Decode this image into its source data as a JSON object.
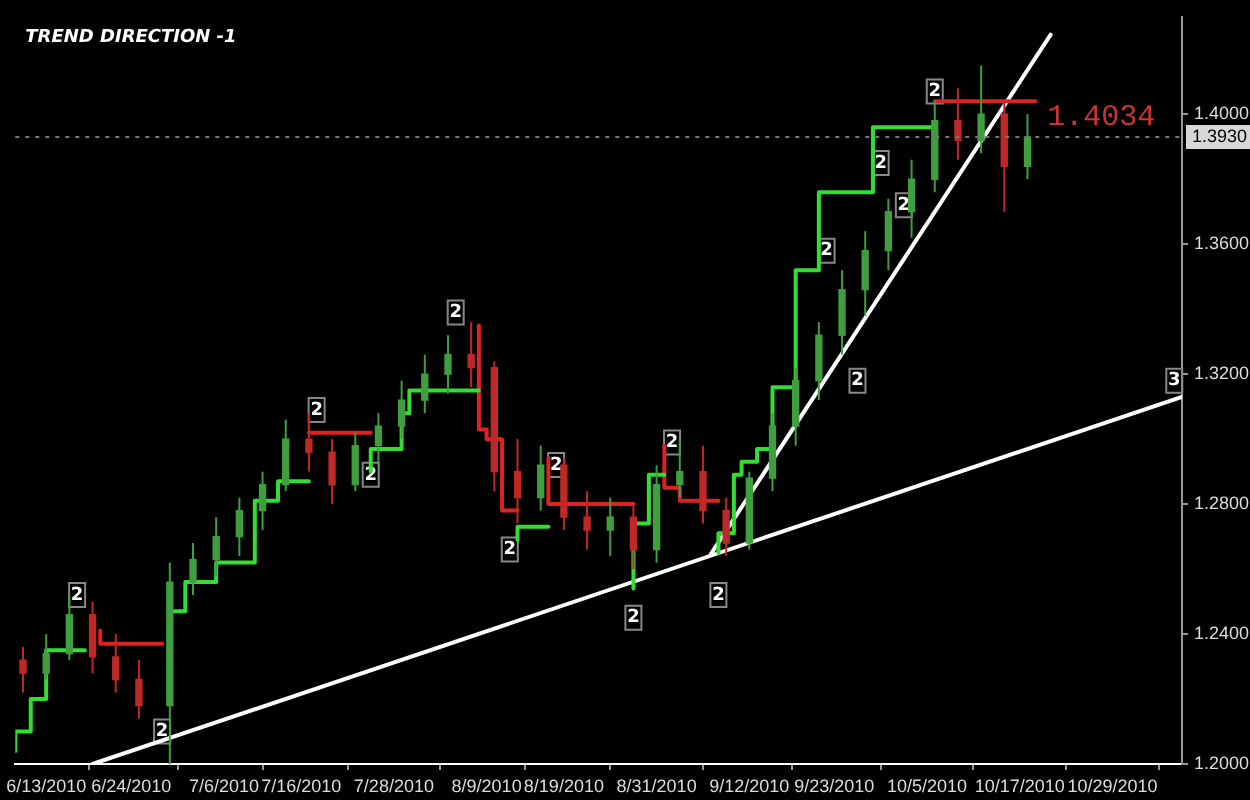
{
  "chart_data": {
    "type": "candlestick",
    "title": "TREND DIRECTION -1",
    "x": [
      "2010-06-10",
      "2010-06-13",
      "2010-06-16",
      "2010-06-19",
      "2010-06-22",
      "2010-06-25",
      "2010-06-29",
      "2010-07-02",
      "2010-07-05",
      "2010-07-08",
      "2010-07-11",
      "2010-07-14",
      "2010-07-17",
      "2010-07-20",
      "2010-07-23",
      "2010-07-26",
      "2010-07-29",
      "2010-08-01",
      "2010-08-04",
      "2010-08-07",
      "2010-08-10",
      "2010-08-13",
      "2010-08-16",
      "2010-08-19",
      "2010-08-22",
      "2010-08-25",
      "2010-08-28",
      "2010-08-31",
      "2010-09-03",
      "2010-09-06",
      "2010-09-09",
      "2010-09-12",
      "2010-09-15",
      "2010-09-18",
      "2010-09-21",
      "2010-09-24",
      "2010-09-27",
      "2010-09-30",
      "2010-10-03",
      "2010-10-06",
      "2010-10-09",
      "2010-10-12",
      "2010-10-15",
      "2010-10-18"
    ],
    "ohlc": [
      [
        1.232,
        1.236,
        1.222,
        1.228
      ],
      [
        1.228,
        1.24,
        1.226,
        1.234
      ],
      [
        1.234,
        1.252,
        1.232,
        1.246
      ],
      [
        1.246,
        1.25,
        1.228,
        1.233
      ],
      [
        1.233,
        1.24,
        1.222,
        1.226
      ],
      [
        1.226,
        1.232,
        1.214,
        1.218
      ],
      [
        1.218,
        1.262,
        1.2,
        1.256
      ],
      [
        1.256,
        1.268,
        1.252,
        1.263
      ],
      [
        1.263,
        1.276,
        1.258,
        1.27
      ],
      [
        1.27,
        1.282,
        1.264,
        1.278
      ],
      [
        1.278,
        1.29,
        1.272,
        1.286
      ],
      [
        1.286,
        1.306,
        1.284,
        1.3
      ],
      [
        1.3,
        1.308,
        1.29,
        1.296
      ],
      [
        1.296,
        1.3,
        1.28,
        1.286
      ],
      [
        1.286,
        1.302,
        1.284,
        1.298
      ],
      [
        1.298,
        1.308,
        1.292,
        1.304
      ],
      [
        1.304,
        1.318,
        1.3,
        1.312
      ],
      [
        1.312,
        1.326,
        1.308,
        1.32
      ],
      [
        1.32,
        1.332,
        1.314,
        1.326
      ],
      [
        1.326,
        1.336,
        1.316,
        1.322
      ],
      [
        1.322,
        1.324,
        1.284,
        1.29
      ],
      [
        1.29,
        1.3,
        1.274,
        1.282
      ],
      [
        1.282,
        1.298,
        1.278,
        1.292
      ],
      [
        1.292,
        1.294,
        1.272,
        1.276
      ],
      [
        1.276,
        1.284,
        1.266,
        1.272
      ],
      [
        1.272,
        1.282,
        1.264,
        1.276
      ],
      [
        1.276,
        1.28,
        1.26,
        1.266
      ],
      [
        1.266,
        1.292,
        1.262,
        1.286
      ],
      [
        1.286,
        1.3,
        1.282,
        1.29
      ],
      [
        1.29,
        1.298,
        1.274,
        1.278
      ],
      [
        1.278,
        1.282,
        1.264,
        1.268
      ],
      [
        1.268,
        1.29,
        1.266,
        1.288
      ],
      [
        1.288,
        1.308,
        1.284,
        1.304
      ],
      [
        1.304,
        1.322,
        1.298,
        1.318
      ],
      [
        1.318,
        1.336,
        1.312,
        1.332
      ],
      [
        1.332,
        1.352,
        1.326,
        1.346
      ],
      [
        1.346,
        1.364,
        1.338,
        1.358
      ],
      [
        1.358,
        1.374,
        1.352,
        1.37
      ],
      [
        1.37,
        1.386,
        1.362,
        1.38
      ],
      [
        1.38,
        1.404,
        1.376,
        1.398
      ],
      [
        1.398,
        1.408,
        1.386,
        1.392
      ],
      [
        1.392,
        1.415,
        1.388,
        1.4
      ],
      [
        1.4,
        1.404,
        1.37,
        1.384
      ],
      [
        1.384,
        1.4,
        1.38,
        1.393
      ]
    ],
    "series": [
      {
        "type": "step",
        "color": "#33dd33",
        "x": [
          "2010-06-09",
          "2010-06-11",
          "2010-06-13",
          "2010-06-16",
          "2010-06-18",
          "2010-06-19",
          "2010-06-29",
          "2010-07-01",
          "2010-07-05",
          "2010-07-10",
          "2010-07-13",
          "2010-07-14",
          "2010-07-17",
          "2010-07-20",
          "2010-07-25",
          "2010-07-29",
          "2010-07-30",
          "2010-08-06",
          "2010-08-08",
          "2010-08-10",
          "2010-08-13",
          "2010-08-14",
          "2010-08-17",
          "2010-08-20",
          "2010-08-28",
          "2010-08-30",
          "2010-08-31",
          "2010-09-01",
          "2010-09-04",
          "2010-09-08",
          "2010-09-10",
          "2010-09-11",
          "2010-09-13",
          "2010-09-15",
          "2010-09-18",
          "2010-09-21",
          "2010-09-28",
          "2010-10-04",
          "2010-10-06"
        ],
        "values": [
          1.204,
          1.21,
          1.22,
          1.235,
          1.235,
          null,
          1.239,
          1.247,
          1.256,
          1.262,
          1.281,
          1.287,
          1.287,
          null,
          1.29,
          1.297,
          1.308,
          1.315,
          1.315,
          null,
          1.269,
          1.273,
          1.273,
          null,
          1.254,
          1.274,
          1.289,
          1.289,
          null,
          1.265,
          1.271,
          1.289,
          1.293,
          1.297,
          1.316,
          1.352,
          1.376,
          1.396,
          1.396
        ]
      },
      {
        "type": "step",
        "color": "#dd2222",
        "x": [
          "2010-06-20",
          "2010-06-26",
          "2010-06-28",
          "2010-07-01",
          "2010-07-17",
          "2010-07-25",
          "2010-07-27",
          "2010-08-08",
          "2010-08-09",
          "2010-08-11",
          "2010-08-12",
          "2010-08-13",
          "2010-08-15",
          "2010-08-17",
          "2010-08-19",
          "2010-08-28",
          "2010-08-30",
          "2010-09-01",
          "2010-09-03",
          "2010-09-06",
          "2010-09-08",
          "2010-09-20",
          "2010-10-06",
          "2010-10-19"
        ],
        "values": [
          1.241,
          1.237,
          1.237,
          null,
          1.302,
          1.302,
          null,
          1.335,
          1.303,
          1.3,
          1.278,
          1.278,
          null,
          1.294,
          1.28,
          1.28,
          null,
          1.298,
          1.285,
          1.281,
          1.281,
          null,
          1.404,
          1.404
        ]
      },
      {
        "type": "line",
        "color": "#ffffff",
        "x": [
          "2010-06-19",
          "2010-11-07"
        ],
        "values": [
          1.2,
          1.313
        ]
      },
      {
        "type": "line",
        "color": "#ffffff",
        "x": [
          "2010-09-07",
          "2010-10-21"
        ],
        "values": [
          1.2645,
          1.4245
        ]
      }
    ],
    "xlim": [
      "2010-06-09",
      "2010-11-07"
    ],
    "ylim": [
      1.2,
      1.43
    ],
    "xticks": [
      {
        "value": "2010-06-13",
        "label": "6/13/2010"
      },
      {
        "value": "2010-06-24",
        "label": "6/24/2010"
      },
      {
        "value": "2010-07-06",
        "label": "7/6/2010"
      },
      {
        "value": "2010-07-16",
        "label": "7/16/2010"
      },
      {
        "value": "2010-07-28",
        "label": "7/28/2010"
      },
      {
        "value": "2010-08-09",
        "label": "8/9/2010"
      },
      {
        "value": "2010-08-19",
        "label": "8/19/2010"
      },
      {
        "value": "2010-08-31",
        "label": "8/31/2010"
      },
      {
        "value": "2010-09-12",
        "label": "9/12/2010"
      },
      {
        "value": "2010-09-23",
        "label": "9/23/2010"
      },
      {
        "value": "2010-10-05",
        "label": "10/5/2010"
      },
      {
        "value": "2010-10-17",
        "label": "10/17/2010"
      },
      {
        "value": "2010-10-29",
        "label": "10/29/2010"
      }
    ],
    "yticks": [
      {
        "value": 1.2,
        "label": "1.2000"
      },
      {
        "value": 1.24,
        "label": "1.2400"
      },
      {
        "value": 1.28,
        "label": "1.2800"
      },
      {
        "value": 1.32,
        "label": "1.3200"
      },
      {
        "value": 1.36,
        "label": "1.3600"
      },
      {
        "value": 1.4,
        "label": "1.4000"
      }
    ],
    "ref_lines": [
      {
        "axis": "y",
        "value": 1.393,
        "label": "1.3930"
      }
    ],
    "annotations": [
      {
        "text": "1.4034",
        "x": "2010-10-19",
        "y": 1.404
      },
      {
        "text": "2",
        "x": "2010-06-17",
        "y": 1.252
      },
      {
        "text": "2",
        "x": "2010-07-18",
        "y": 1.309
      },
      {
        "text": "2",
        "x": "2010-08-05",
        "y": 1.339
      },
      {
        "text": "2",
        "x": "2010-08-18",
        "y": 1.292
      },
      {
        "text": "2",
        "x": "2010-09-02",
        "y": 1.299
      },
      {
        "text": "2",
        "x": "2010-09-22",
        "y": 1.358
      },
      {
        "text": "2",
        "x": "2010-09-29",
        "y": 1.385
      },
      {
        "text": "2",
        "x": "2010-10-06",
        "y": 1.407
      },
      {
        "text": "2",
        "x": "2010-06-28",
        "y": 1.21
      },
      {
        "text": "2",
        "x": "2010-07-25",
        "y": 1.289
      },
      {
        "text": "2",
        "x": "2010-08-12",
        "y": 1.266
      },
      {
        "text": "2",
        "x": "2010-08-28",
        "y": 1.245
      },
      {
        "text": "2",
        "x": "2010-09-08",
        "y": 1.252
      },
      {
        "text": "2",
        "x": "2010-09-26",
        "y": 1.318
      },
      {
        "text": "2",
        "x": "2010-10-02",
        "y": 1.372
      },
      {
        "text": "3",
        "x": "2010-11-06",
        "y": 1.318
      }
    ],
    "legend": false
  }
}
